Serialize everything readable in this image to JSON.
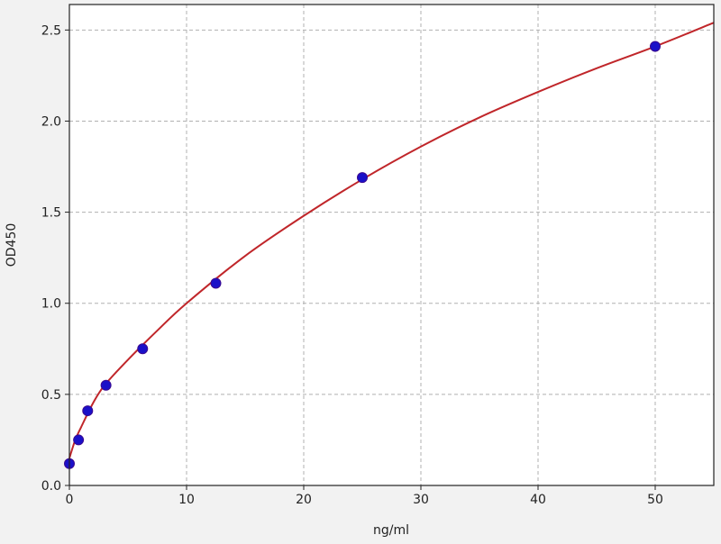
{
  "chart_data": {
    "type": "scatter",
    "title": "",
    "xlabel": "ng/ml",
    "ylabel": "OD450",
    "xlim": [
      0,
      55
    ],
    "ylim": [
      0,
      2.64
    ],
    "xticks": [
      0,
      10,
      20,
      30,
      40,
      50
    ],
    "xtick_labels": [
      "0",
      "10",
      "20",
      "30",
      "40",
      "50"
    ],
    "yticks": [
      0,
      0.5,
      1.0,
      1.5,
      2.0,
      2.5
    ],
    "ytick_labels": [
      "0.0",
      "0.5",
      "1.0",
      "1.5",
      "2.0",
      "2.5"
    ],
    "grid": true,
    "series": [
      {
        "type": "scatter",
        "color": "#1a10c8",
        "x": [
          0,
          0.78,
          1.56,
          3.125,
          6.25,
          12.5,
          25,
          50
        ],
        "y": [
          0.12,
          0.25,
          0.41,
          0.55,
          0.75,
          1.11,
          1.69,
          2.41
        ]
      },
      {
        "type": "line",
        "color": "#c0262a",
        "x": [
          0,
          0.5,
          1,
          2,
          3,
          5,
          7.5,
          10,
          15,
          20,
          25,
          30,
          35,
          40,
          45,
          50,
          55
        ],
        "y": [
          0.15,
          0.25,
          0.32,
          0.45,
          0.55,
          0.69,
          0.85,
          1.0,
          1.26,
          1.48,
          1.68,
          1.86,
          2.02,
          2.16,
          2.29,
          2.41,
          2.54
        ]
      }
    ]
  }
}
